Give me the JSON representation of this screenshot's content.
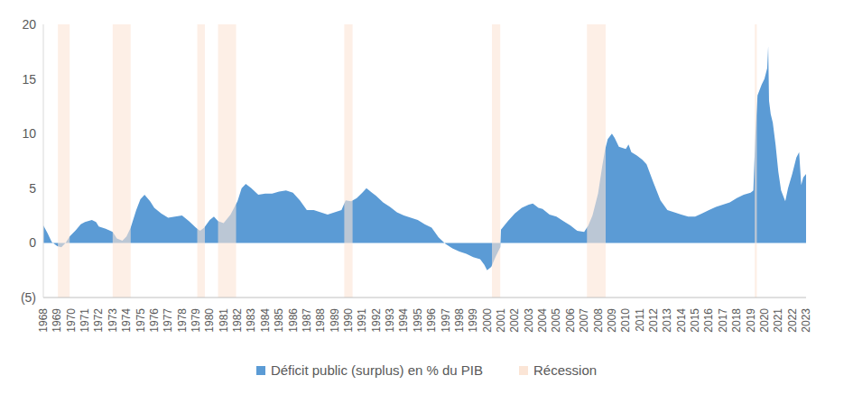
{
  "chart_data": {
    "type": "area",
    "x": [
      1968.0,
      1968.3,
      1968.6,
      1969.0,
      1969.3,
      1969.6,
      1969.9,
      1970.3,
      1970.7,
      1971.0,
      1971.5,
      1971.8,
      1972.0,
      1972.5,
      1973.0,
      1973.3,
      1973.7,
      1974.0,
      1974.3,
      1974.7,
      1975.0,
      1975.3,
      1975.7,
      1976.0,
      1976.5,
      1977.0,
      1977.5,
      1978.0,
      1978.5,
      1979.0,
      1979.3,
      1979.6,
      1980.0,
      1980.3,
      1980.6,
      1981.0,
      1981.5,
      1982.0,
      1982.3,
      1982.6,
      1983.0,
      1983.5,
      1984.0,
      1984.5,
      1985.0,
      1985.5,
      1986.0,
      1986.5,
      1987.0,
      1987.5,
      1988.0,
      1988.5,
      1989.0,
      1989.5,
      1989.8,
      1990.2,
      1990.6,
      1991.0,
      1991.3,
      1991.7,
      1992.0,
      1992.5,
      1993.0,
      1993.5,
      1994.0,
      1994.5,
      1995.0,
      1995.5,
      1996.0,
      1996.5,
      1997.0,
      1997.5,
      1998.0,
      1998.5,
      1999.0,
      1999.5,
      1999.8,
      2000.0,
      2000.3,
      2000.6,
      2000.95,
      2001.0,
      2001.5,
      2002.0,
      2002.5,
      2003.0,
      2003.3,
      2003.7,
      2004.0,
      2004.5,
      2005.0,
      2005.5,
      2006.0,
      2006.5,
      2007.0,
      2007.3,
      2007.6,
      2008.0,
      2008.3,
      2008.5,
      2008.7,
      2009.0,
      2009.2,
      2009.5,
      2010.0,
      2010.2,
      2010.4,
      2010.8,
      2011.2,
      2011.5,
      2012.0,
      2012.5,
      2013.0,
      2013.5,
      2014.0,
      2014.5,
      2015.0,
      2015.5,
      2016.0,
      2016.5,
      2017.0,
      2017.5,
      2018.0,
      2018.5,
      2019.0,
      2019.2,
      2019.35,
      2019.5,
      2019.8,
      2020.0,
      2020.2,
      2020.27,
      2020.33,
      2020.45,
      2020.6,
      2020.8,
      2021.0,
      2021.2,
      2021.5,
      2021.7,
      2022.0,
      2022.3,
      2022.5,
      2022.65,
      2022.8,
      2023.0
    ],
    "series": [
      {
        "name": "Déficit public (surplus) en % du PIB",
        "color": "#5B9BD5",
        "values": [
          1.6,
          0.9,
          0.1,
          -0.3,
          -0.4,
          0.0,
          0.6,
          1.1,
          1.7,
          1.9,
          2.1,
          1.9,
          1.5,
          1.3,
          1.0,
          0.4,
          0.2,
          0.6,
          1.4,
          3.0,
          4.0,
          4.4,
          3.8,
          3.2,
          2.7,
          2.3,
          2.4,
          2.5,
          2.0,
          1.4,
          1.1,
          1.4,
          2.1,
          2.4,
          2.0,
          1.8,
          2.6,
          3.8,
          5.0,
          5.4,
          5.0,
          4.4,
          4.5,
          4.5,
          4.7,
          4.8,
          4.6,
          3.9,
          3.0,
          3.0,
          2.8,
          2.6,
          2.8,
          3.0,
          3.9,
          3.8,
          4.1,
          4.6,
          5.0,
          4.6,
          4.3,
          3.7,
          3.3,
          2.8,
          2.5,
          2.3,
          2.1,
          1.7,
          1.4,
          0.5,
          -0.1,
          -0.5,
          -0.8,
          -1.0,
          -1.3,
          -1.5,
          -2.0,
          -2.5,
          -2.2,
          -1.3,
          -0.4,
          1.2,
          2.0,
          2.7,
          3.2,
          3.5,
          3.6,
          3.2,
          3.1,
          2.6,
          2.4,
          2.0,
          1.6,
          1.1,
          1.0,
          1.6,
          2.5,
          4.5,
          7.0,
          8.5,
          9.5,
          10.0,
          9.6,
          8.8,
          8.6,
          9.0,
          8.3,
          8.0,
          7.6,
          7.2,
          5.5,
          3.9,
          3.0,
          2.8,
          2.6,
          2.4,
          2.4,
          2.7,
          3.0,
          3.3,
          3.5,
          3.7,
          4.1,
          4.4,
          4.6,
          4.8,
          10.0,
          13.5,
          14.5,
          15.0,
          16.0,
          18.0,
          13.0,
          11.8,
          11.0,
          9.0,
          6.5,
          4.8,
          3.8,
          5.0,
          6.3,
          7.8,
          8.3,
          5.3,
          6.0,
          6.3
        ]
      }
    ],
    "recessions": {
      "name": "Récession",
      "color": "#FBE5D6",
      "periods": [
        [
          1969.05,
          1969.9
        ],
        [
          1973.0,
          1974.3
        ],
        [
          1979.1,
          1979.65
        ],
        [
          1980.6,
          1981.9
        ],
        [
          1989.7,
          1990.3
        ],
        [
          2000.35,
          2000.95
        ],
        [
          2007.2,
          2008.55
        ],
        [
          2019.3,
          2019.45
        ]
      ]
    },
    "xlim": [
      1968,
      2023
    ],
    "xticks": [
      1968,
      1969,
      1970,
      1971,
      1972,
      1973,
      1974,
      1975,
      1976,
      1977,
      1978,
      1979,
      1980,
      1981,
      1982,
      1983,
      1984,
      1985,
      1986,
      1987,
      1988,
      1989,
      1990,
      1991,
      1992,
      1993,
      1994,
      1995,
      1996,
      1997,
      1998,
      1999,
      2000,
      2001,
      2002,
      2003,
      2004,
      2005,
      2006,
      2007,
      2008,
      2009,
      2010,
      2011,
      2012,
      2013,
      2014,
      2015,
      2016,
      2017,
      2018,
      2019,
      2020,
      2021,
      2022,
      2023
    ],
    "ylim": [
      -5,
      20
    ],
    "yticks": [
      {
        "value": -5,
        "label": "(5)"
      },
      0,
      5,
      10,
      15,
      20
    ],
    "grid": false
  }
}
